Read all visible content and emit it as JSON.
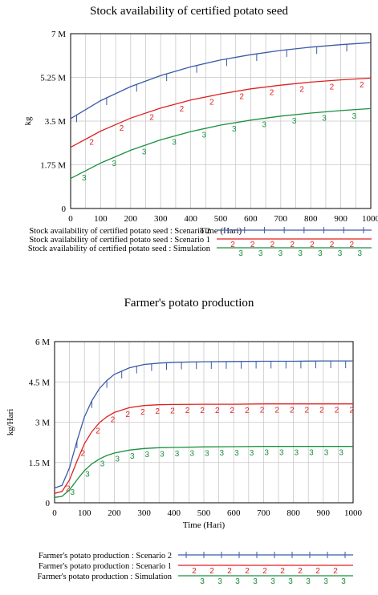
{
  "colors": {
    "scenario2": "#3a5aa8",
    "scenario1": "#e02020",
    "simulation": "#1a9040",
    "grid": "#c8c8c8",
    "axis": "#000000"
  },
  "chart_data": [
    {
      "type": "line",
      "title": "Stock availability of certified potato seed",
      "xlabel": "Time (Hari)",
      "ylabel": "kg",
      "xlim": [
        0,
        1000
      ],
      "ylim": [
        0,
        7000000
      ],
      "x_ticks": [
        "0",
        "100",
        "200",
        "300",
        "400",
        "500",
        "600",
        "700",
        "800",
        "900",
        "1000"
      ],
      "y_ticks": [
        "0",
        "1.75 M",
        "3.5 M",
        "5.25 M",
        "7 M"
      ],
      "grid": true,
      "legend_placement": "bottom",
      "x": [
        0,
        100,
        200,
        300,
        400,
        500,
        600,
        700,
        800,
        900,
        1000
      ],
      "series": [
        {
          "name": "Stock availability of certified potato seed : Scenario 2",
          "marker": "1",
          "color_key": "scenario2",
          "values": [
            3600000,
            4320000,
            4880000,
            5320000,
            5670000,
            5950000,
            6160000,
            6330000,
            6460000,
            6560000,
            6640000
          ]
        },
        {
          "name": "Stock availability of certified potato seed : Scenario 1",
          "marker": "2",
          "color_key": "scenario1",
          "values": [
            2450000,
            3100000,
            3620000,
            4020000,
            4340000,
            4590000,
            4790000,
            4940000,
            5060000,
            5150000,
            5220000
          ]
        },
        {
          "name": "Stock availability of certified potato seed : Simulation",
          "marker": "3",
          "color_key": "simulation",
          "values": [
            1200000,
            1820000,
            2330000,
            2750000,
            3080000,
            3340000,
            3540000,
            3700000,
            3820000,
            3920000,
            4000000
          ]
        }
      ]
    },
    {
      "type": "line",
      "title": "Farmer's potato production",
      "xlabel": "Time (Hari)",
      "ylabel": "kg/Hari",
      "xlim": [
        0,
        1000
      ],
      "ylim": [
        0,
        6000000
      ],
      "x_ticks": [
        "0",
        "100",
        "200",
        "300",
        "400",
        "500",
        "600",
        "700",
        "800",
        "900",
        "1000"
      ],
      "y_ticks": [
        "0",
        "1.5 M",
        "3 M",
        "4.5 M",
        "6 M"
      ],
      "grid": true,
      "legend_placement": "bottom",
      "x": [
        0,
        25,
        50,
        75,
        100,
        125,
        150,
        175,
        200,
        250,
        300,
        350,
        400,
        500,
        600,
        700,
        800,
        900,
        1000
      ],
      "series": [
        {
          "name": "Farmer's potato production : Scenario 2",
          "marker": "1",
          "color_key": "scenario2",
          "values": [
            550000,
            650000,
            1300000,
            2300000,
            3200000,
            3800000,
            4250000,
            4550000,
            4780000,
            5020000,
            5150000,
            5200000,
            5230000,
            5250000,
            5260000,
            5270000,
            5270000,
            5280000,
            5280000
          ]
        },
        {
          "name": "Farmer's potato production : Scenario 1",
          "marker": "2",
          "color_key": "scenario1",
          "values": [
            350000,
            420000,
            850000,
            1550000,
            2200000,
            2650000,
            2980000,
            3200000,
            3360000,
            3540000,
            3620000,
            3650000,
            3660000,
            3670000,
            3670000,
            3680000,
            3680000,
            3680000,
            3680000
          ]
        },
        {
          "name": "Farmer's potato production : Simulation",
          "marker": "3",
          "color_key": "simulation",
          "values": [
            200000,
            240000,
            480000,
            850000,
            1200000,
            1450000,
            1630000,
            1760000,
            1850000,
            1960000,
            2020000,
            2050000,
            2060000,
            2080000,
            2090000,
            2100000,
            2100000,
            2100000,
            2100000
          ]
        }
      ]
    }
  ]
}
